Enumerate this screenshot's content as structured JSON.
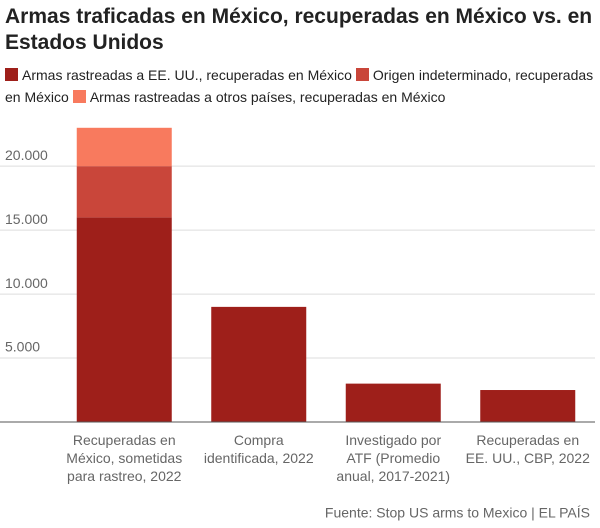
{
  "chart_data": {
    "type": "stacked-bar",
    "title": "Armas traficadas en México, recuperadas en México vs. en Estados Unidos",
    "categories": [
      [
        "Recuperadas en",
        "México, sometidas",
        "para rastreo, 2022"
      ],
      [
        "Compra",
        "identificada, 2022"
      ],
      [
        "Investigado por",
        "ATF (Promedio",
        "anual, 2017-2021)"
      ],
      [
        "Recuperadas en",
        "EE. UU., CBP, 2022"
      ]
    ],
    "series": [
      {
        "name": "Armas rastreadas a EE. UU., recuperadas en México",
        "color": "#9e1f1a",
        "values": [
          16000,
          9000,
          3000,
          2500
        ]
      },
      {
        "name": "Origen indeterminado, recuperadas en México",
        "color": "#c9463a",
        "values": [
          4000,
          null,
          null,
          null
        ]
      },
      {
        "name": "Armas rastreadas a otros países, recuperadas en México",
        "color": "#f87a5e",
        "values": [
          3000,
          null,
          null,
          null
        ]
      }
    ],
    "ylim": [
      0,
      24000
    ],
    "yticks": [
      {
        "value": 5000,
        "label": "5.000"
      },
      {
        "value": 10000,
        "label": "10.000"
      },
      {
        "value": 15000,
        "label": "15.000"
      },
      {
        "value": 20000,
        "label": "20.000"
      }
    ],
    "grid": true,
    "source": "Fuente: Stop US arms to Mexico | EL PAÍS"
  }
}
